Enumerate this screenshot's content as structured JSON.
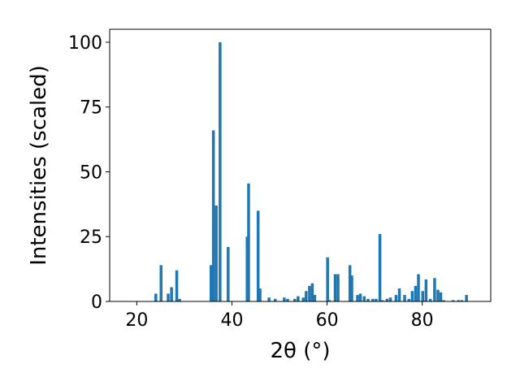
{
  "chart_data": {
    "type": "bar",
    "title": "",
    "xlabel": "2θ (°)",
    "ylabel": "Intensities (scaled)",
    "xlim": [
      14.3,
      94.4
    ],
    "ylim": [
      0,
      105
    ],
    "x_ticks": [
      20,
      40,
      60,
      80
    ],
    "y_ticks": [
      0,
      25,
      50,
      75,
      100
    ],
    "bar_color": "#1f77b4",
    "bar_width": 0.6,
    "grid": false,
    "legend": "none",
    "x": [
      24.0,
      25.1,
      26.6,
      27.3,
      28.4,
      29.0,
      35.6,
      36.1,
      36.7,
      37.5,
      39.2,
      43.2,
      43.5,
      45.5,
      45.9,
      47.8,
      49.1,
      51.0,
      51.7,
      53.2,
      53.9,
      55.0,
      55.6,
      56.3,
      56.9,
      57.4,
      60.1,
      60.5,
      61.7,
      62.3,
      64.8,
      65.2,
      66.4,
      67.0,
      67.8,
      68.6,
      69.6,
      70.3,
      71.1,
      71.6,
      72.6,
      73.3,
      74.5,
      75.2,
      76.3,
      77.2,
      77.9,
      78.6,
      79.2,
      80.1,
      80.8,
      81.7,
      82.6,
      83.3,
      83.9,
      84.5,
      86.5,
      87.6,
      88.3,
      89.3
    ],
    "values": [
      3,
      14,
      3,
      5.5,
      12,
      1,
      14,
      66,
      37,
      100,
      21,
      25,
      45.5,
      35,
      5,
      1.5,
      1,
      1.5,
      1,
      1,
      2,
      1.5,
      4,
      6,
      7,
      2.5,
      17,
      0.5,
      10.5,
      10.5,
      14,
      10,
      2.5,
      3,
      2,
      1,
      1,
      1,
      26,
      0.5,
      1,
      1.5,
      2.5,
      5,
      2.5,
      1,
      4,
      6,
      10.5,
      4,
      8.5,
      1,
      9,
      4.5,
      3.5,
      0.5,
      0.5,
      0.5,
      0.5,
      2.5
    ]
  }
}
